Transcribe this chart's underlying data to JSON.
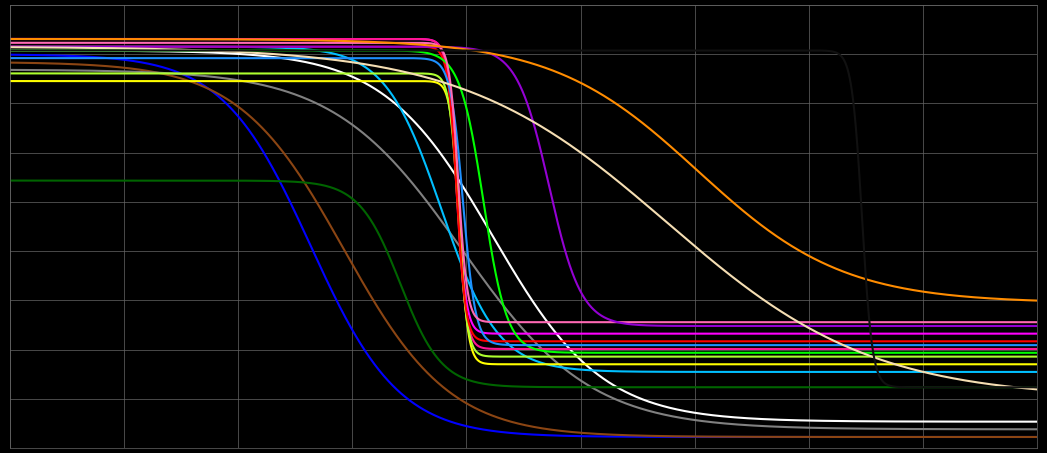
{
  "background_color": "#000000",
  "grid_color": "#666666",
  "figsize": [
    10.47,
    4.53
  ],
  "dpi": 100,
  "xlim": [
    0,
    1000
  ],
  "ylim": [
    -8,
    108
  ],
  "curves": [
    {
      "color": "#0000ff",
      "start_y": 95,
      "end_y": -5,
      "drop_start": 155,
      "drop_end": 430,
      "sharpness": 8
    },
    {
      "color": "#8b4513",
      "start_y": 93,
      "end_y": -5,
      "drop_start": 160,
      "drop_end": 490,
      "sharpness": 8
    },
    {
      "color": "#808080",
      "start_y": 91,
      "end_y": -3,
      "drop_start": 240,
      "drop_end": 640,
      "sharpness": 8
    },
    {
      "color": "#ffffff",
      "start_y": 96,
      "end_y": -1,
      "drop_start": 300,
      "drop_end": 640,
      "sharpness": 8
    },
    {
      "color": "#00bfff",
      "start_y": 97,
      "end_y": 12,
      "drop_start": 310,
      "drop_end": 530,
      "sharpness": 10
    },
    {
      "color": "#006400",
      "start_y": 62,
      "end_y": 8,
      "drop_start": 300,
      "drop_end": 460,
      "sharpness": 10
    },
    {
      "color": "#ff00ff",
      "start_y": 99,
      "end_y": 22,
      "drop_start": 390,
      "drop_end": 480,
      "sharpness": 25
    },
    {
      "color": "#ff1493",
      "start_y": 99,
      "end_y": 18,
      "drop_start": 390,
      "drop_end": 480,
      "sharpness": 25
    },
    {
      "color": "#ffff00",
      "start_y": 88,
      "end_y": 14,
      "drop_start": 395,
      "drop_end": 480,
      "sharpness": 25
    },
    {
      "color": "#adff2f",
      "start_y": 90,
      "end_y": 16,
      "drop_start": 393,
      "drop_end": 480,
      "sharpness": 25
    },
    {
      "color": "#ff0000",
      "start_y": 97,
      "end_y": 20,
      "drop_start": 392,
      "drop_end": 478,
      "sharpness": 25
    },
    {
      "color": "#00ff00",
      "start_y": 96,
      "end_y": 17,
      "drop_start": 392,
      "drop_end": 530,
      "sharpness": 15
    },
    {
      "color": "#1e90ff",
      "start_y": 94,
      "end_y": 19,
      "drop_start": 392,
      "drop_end": 490,
      "sharpness": 20
    },
    {
      "color": "#ff69b4",
      "start_y": 98,
      "end_y": 25,
      "drop_start": 393,
      "drop_end": 480,
      "sharpness": 25
    },
    {
      "color": "#9400d3",
      "start_y": 97,
      "end_y": 24,
      "drop_start": 450,
      "drop_end": 600,
      "sharpness": 12
    },
    {
      "color": "#ff8c00",
      "start_y": 99,
      "end_y": 30,
      "drop_start": 500,
      "drop_end": 840,
      "sharpness": 6
    },
    {
      "color": "#f5deb3",
      "start_y": 97,
      "end_y": 5,
      "drop_start": 440,
      "drop_end": 840,
      "sharpness": 5
    },
    {
      "color": "#111111",
      "start_y": 96,
      "end_y": 8,
      "drop_start": 790,
      "drop_end": 870,
      "sharpness": 20
    }
  ]
}
